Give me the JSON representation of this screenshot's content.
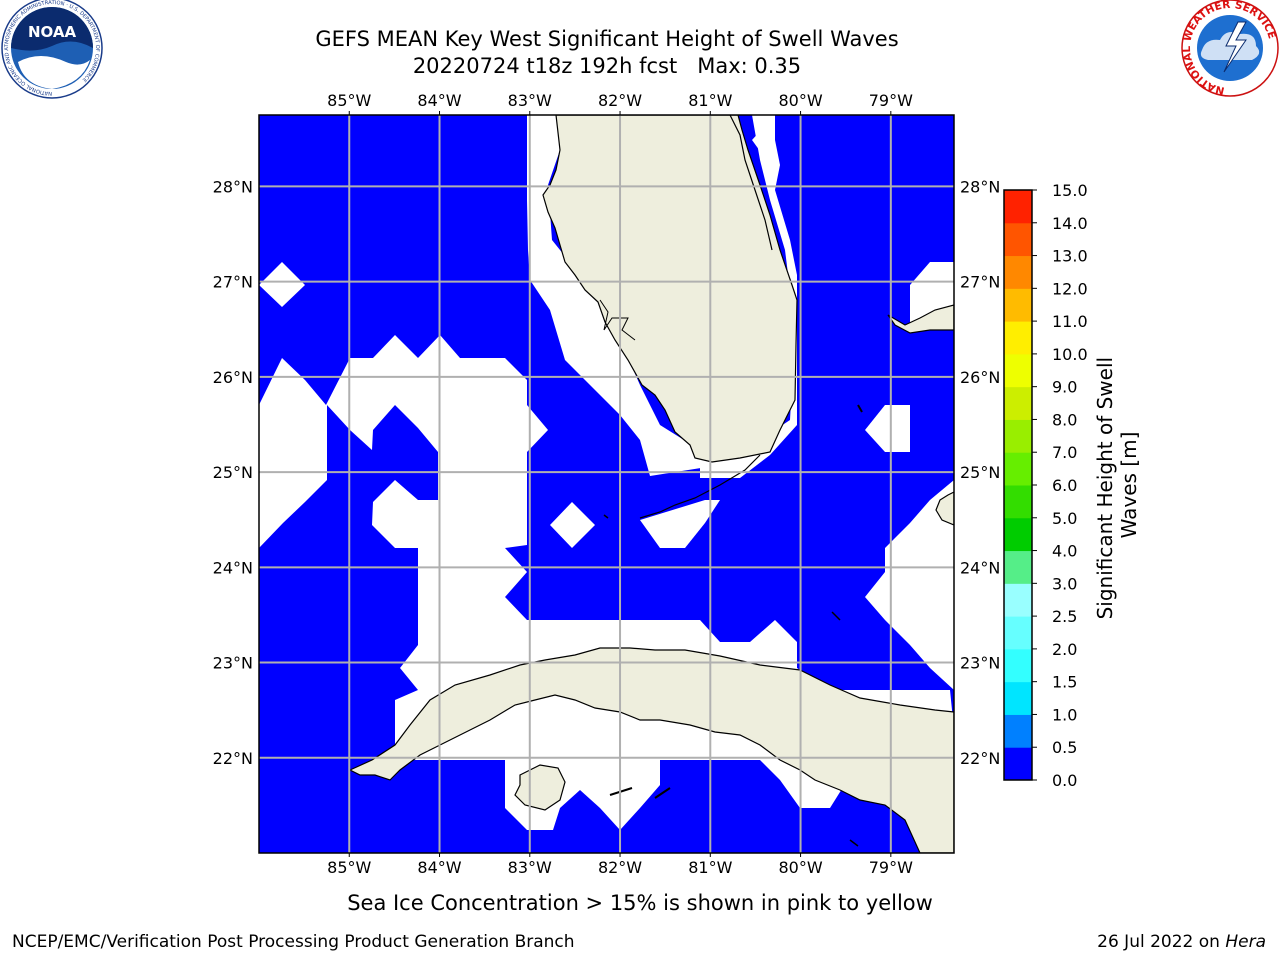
{
  "title": {
    "line1": "GEFS MEAN Key West Significant Height of Swell Waves",
    "line2": "20220724 t18z 192h fcst   Max: 0.35"
  },
  "logos": {
    "noaa_text": "NOAA",
    "noaa_ring": "NATIONAL OCEANIC AND ATMOSPHERIC ADMINISTRATION · U.S. DEPARTMENT OF COMMERCE",
    "nws_ring": "NATIONAL WEATHER SERVICE"
  },
  "map": {
    "lon_labels": [
      "85°W",
      "84°W",
      "83°W",
      "82°W",
      "81°W",
      "80°W",
      "79°W"
    ],
    "lat_labels": [
      "28°N",
      "27°N",
      "26°N",
      "25°N",
      "24°N",
      "23°N",
      "22°N"
    ],
    "lon_range": [
      -86.0,
      -78.3
    ],
    "lat_range": [
      21.0,
      28.75
    ],
    "colors": {
      "ocean": "#0000ff",
      "land": "#eeeedd",
      "nodata": "#ffffff",
      "grid": "#b0b0b0"
    }
  },
  "colorbar": {
    "label": "Significant Height of Swell Waves [m]",
    "ticks": [
      "0.0",
      "0.5",
      "1.0",
      "1.5",
      "2.0",
      "2.5",
      "3.0",
      "4.0",
      "5.0",
      "6.0",
      "7.0",
      "8.0",
      "9.0",
      "10.0",
      "11.0",
      "12.0",
      "13.0",
      "14.0",
      "15.0"
    ],
    "colors": [
      "#0000ff",
      "#0080ff",
      "#00e5ff",
      "#33ffff",
      "#66ffff",
      "#99ffff",
      "#55ee88",
      "#00cc00",
      "#33dd00",
      "#66ee00",
      "#99ee00",
      "#ccee00",
      "#eeff00",
      "#ffee00",
      "#ffbb00",
      "#ff8800",
      "#ff5500",
      "#ff2200",
      "#ff0000"
    ]
  },
  "footer": {
    "ice_note": "Sea Ice Concentration > 15% is shown in pink to yellow",
    "left": "NCEP/EMC/Verification Post Processing Product Generation Branch",
    "right_date": "26 Jul 2022 on ",
    "right_host": "Hera"
  },
  "chart_data": {
    "type": "heatmap",
    "title": "GEFS MEAN Key West Significant Height of Swell Waves",
    "subtitle": "20220724 t18z 192h fcst   Max: 0.35",
    "max_value": 0.35,
    "units": "m",
    "colorbar_range": [
      0.0,
      15.0
    ],
    "xlabel": "",
    "ylabel": ""
  }
}
